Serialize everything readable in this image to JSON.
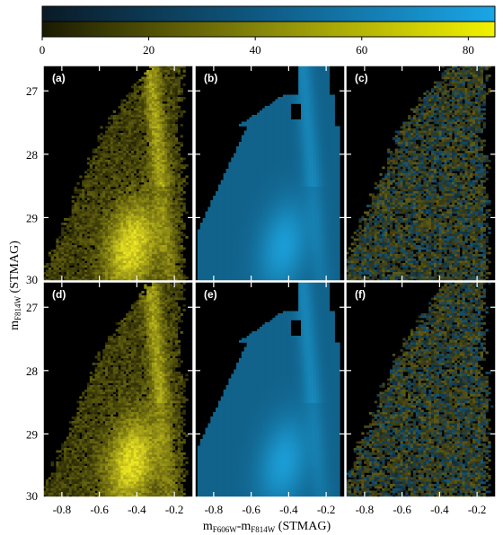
{
  "chart_data": {
    "type": "heatmap",
    "description_layout": "2x3 grid of Hess diagrams (color-magnitude density maps)",
    "colorbar": {
      "ticks": [
        0,
        20,
        40,
        60,
        80
      ],
      "range": [
        0,
        85
      ],
      "top_color": "#1aa6e6",
      "bottom_color": "#f2f200"
    },
    "xlabel": {
      "main": "m",
      "sub1": "F606W",
      "mid": "-m",
      "sub2": "F814W",
      "tail": " (STMAG)"
    },
    "ylabel": {
      "main": "m",
      "sub": "F814W",
      "tail": " (STMAG)"
    },
    "xlim": [
      -0.9,
      -0.1
    ],
    "ylim": [
      30.0,
      26.6
    ],
    "xticks": [
      -0.8,
      -0.6,
      -0.4,
      -0.2
    ],
    "xtick_labels": [
      "-0.8",
      "-0.6",
      "-0.4",
      "-0.2"
    ],
    "yticks": [
      27,
      28,
      29,
      30
    ],
    "ytick_labels": [
      "27",
      "28",
      "29",
      "30"
    ],
    "panels": [
      {
        "label": "(a)",
        "kind": "observed",
        "colormap": "yellow"
      },
      {
        "label": "(b)",
        "kind": "model",
        "colormap": "blue"
      },
      {
        "label": "(c)",
        "kind": "residual",
        "colormap": "mixed"
      },
      {
        "label": "(d)",
        "kind": "observed",
        "colormap": "yellow"
      },
      {
        "label": "(e)",
        "kind": "model",
        "colormap": "blue"
      },
      {
        "label": "(f)",
        "kind": "residual",
        "colormap": "mixed"
      }
    ],
    "colors": {
      "background": "#000000",
      "yellow_max": "#ecec20",
      "blue_max": "#1e9ed8",
      "residual_yellow": "#6c6a1c",
      "residual_blue": "#1e5e7e"
    }
  }
}
